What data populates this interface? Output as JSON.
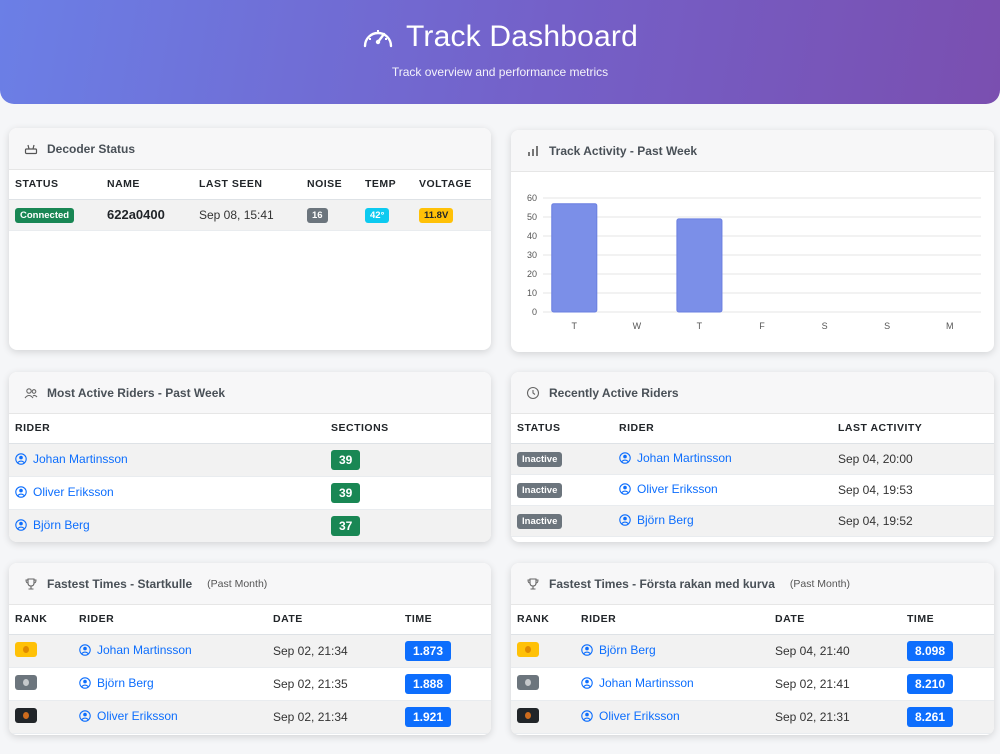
{
  "header": {
    "title": "Track Dashboard",
    "subtitle": "Track overview and performance metrics"
  },
  "decoder": {
    "title": "Decoder Status",
    "columns": [
      "STATUS",
      "NAME",
      "LAST SEEN",
      "NOISE",
      "TEMP",
      "VOLTAGE"
    ],
    "row": {
      "status": "Connected",
      "name": "622a0400",
      "last_seen": "Sep 08, 15:41",
      "noise": "16",
      "temp": "42°",
      "voltage": "11.8V"
    }
  },
  "activity": {
    "title": "Track Activity - Past Week",
    "chart_data": {
      "type": "bar",
      "categories": [
        "T",
        "W",
        "T",
        "F",
        "S",
        "S",
        "M"
      ],
      "values": [
        57,
        0,
        49,
        0,
        0,
        0,
        0
      ],
      "ylim": [
        0,
        60
      ],
      "yticks": [
        0,
        10,
        20,
        30,
        40,
        50,
        60
      ],
      "title": "",
      "xlabel": "",
      "ylabel": "",
      "grid": true,
      "color": "#7b8fe8"
    }
  },
  "most_active": {
    "title": "Most Active Riders - Past Week",
    "columns": [
      "RIDER",
      "SECTIONS"
    ],
    "rows": [
      {
        "rider": "Johan Martinsson",
        "sections": "39"
      },
      {
        "rider": "Oliver Eriksson",
        "sections": "39"
      },
      {
        "rider": "Björn Berg",
        "sections": "37"
      }
    ]
  },
  "recent": {
    "title": "Recently Active Riders",
    "columns": [
      "STATUS",
      "RIDER",
      "LAST ACTIVITY"
    ],
    "rows": [
      {
        "status": "Inactive",
        "rider": "Johan Martinsson",
        "last": "Sep 04, 20:00"
      },
      {
        "status": "Inactive",
        "rider": "Oliver Eriksson",
        "last": "Sep 04, 19:53"
      },
      {
        "status": "Inactive",
        "rider": "Björn Berg",
        "last": "Sep 04, 19:52"
      }
    ]
  },
  "fastest_a": {
    "title": "Fastest Times - Startkulle",
    "period": "(Past Month)",
    "columns": [
      "RANK",
      "RIDER",
      "DATE",
      "TIME"
    ],
    "rows": [
      {
        "rank": "gold",
        "rider": "Johan Martinsson",
        "date": "Sep 02, 21:34",
        "time": "1.873"
      },
      {
        "rank": "silver",
        "rider": "Björn Berg",
        "date": "Sep 02, 21:35",
        "time": "1.888"
      },
      {
        "rank": "bronze",
        "rider": "Oliver Eriksson",
        "date": "Sep 02, 21:34",
        "time": "1.921"
      }
    ]
  },
  "fastest_b": {
    "title": "Fastest Times - Första rakan med kurva",
    "period": "(Past Month)",
    "columns": [
      "RANK",
      "RIDER",
      "DATE",
      "TIME"
    ],
    "rows": [
      {
        "rank": "gold",
        "rider": "Björn Berg",
        "date": "Sep 04, 21:40",
        "time": "8.098"
      },
      {
        "rank": "silver",
        "rider": "Johan Martinsson",
        "date": "Sep 02, 21:41",
        "time": "8.210"
      },
      {
        "rank": "bronze",
        "rider": "Oliver Eriksson",
        "date": "Sep 02, 21:31",
        "time": "8.261"
      }
    ]
  }
}
